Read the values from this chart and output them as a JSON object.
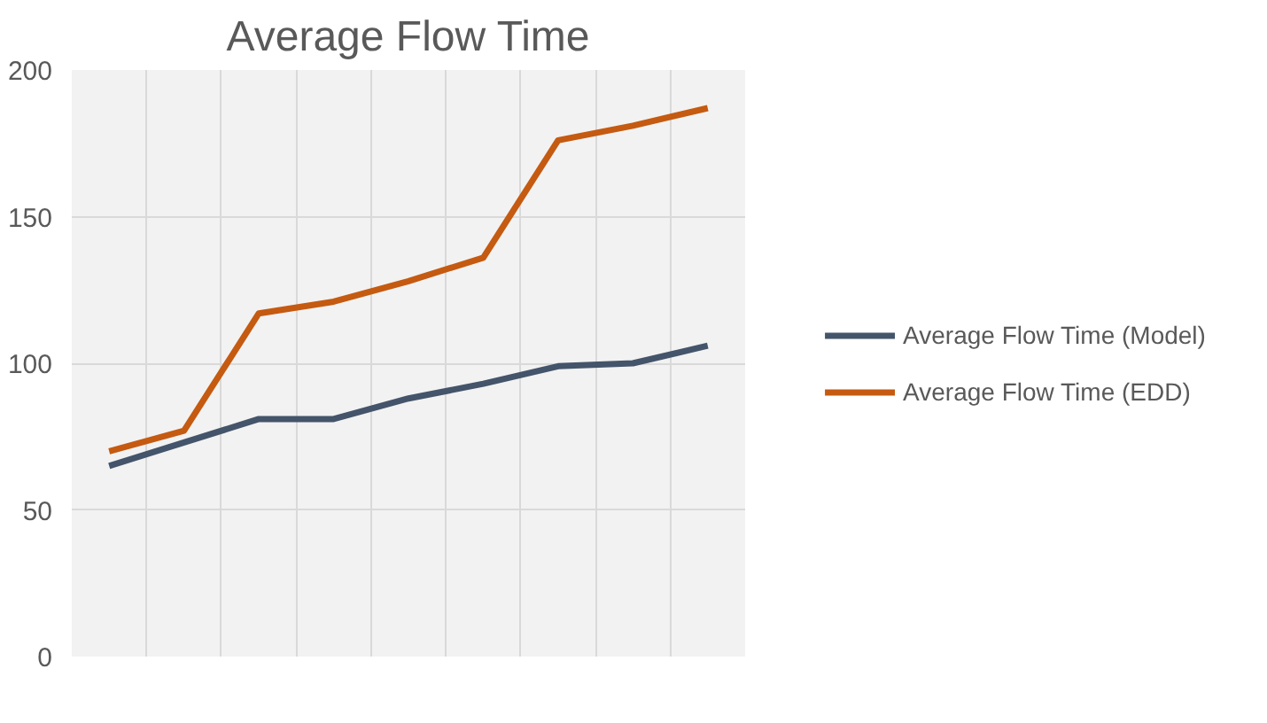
{
  "chart_data": {
    "type": "line",
    "title": "Average Flow Time",
    "categories": [
      null,
      null,
      null,
      null,
      null,
      null,
      null,
      null,
      null
    ],
    "series": [
      {
        "name": "Average Flow Time (Model)",
        "color": "#44546a",
        "values": [
          65,
          73,
          81,
          81,
          88,
          93,
          99,
          100,
          106
        ]
      },
      {
        "name": "Average Flow Time (EDD)",
        "color": "#c55a11",
        "values": [
          70,
          77,
          117,
          121,
          128,
          136,
          176,
          181,
          187
        ]
      }
    ],
    "ylim": [
      0,
      200
    ],
    "yticks": [
      0,
      50,
      100,
      150,
      200
    ],
    "grid": true,
    "legend": "right",
    "line_style": "solid",
    "marker": "none"
  }
}
